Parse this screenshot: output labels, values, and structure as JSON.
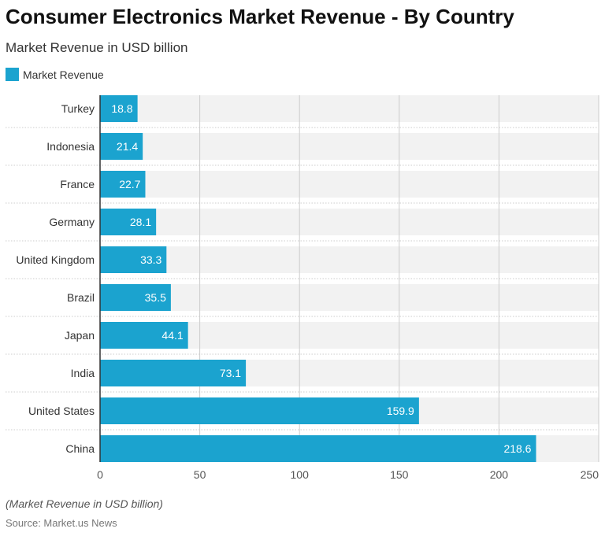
{
  "title": "Consumer Electronics Market Revenue - By Country",
  "subtitle": "Market Revenue in USD billion",
  "note": "(Market Revenue in USD billion)",
  "source": "Source: Market.us News",
  "chart_data": {
    "type": "bar",
    "orientation": "horizontal",
    "title": "Consumer Electronics Market Revenue - By Country",
    "subtitle": "Market Revenue in USD billion",
    "categories": [
      "Turkey",
      "Indonesia",
      "France",
      "Germany",
      "United Kingdom",
      "Brazil",
      "Japan",
      "India",
      "United States",
      "China"
    ],
    "series": [
      {
        "name": "Market Revenue",
        "values": [
          18.8,
          21.4,
          22.7,
          28.1,
          33.3,
          35.5,
          44.1,
          73.1,
          159.9,
          218.6
        ],
        "color": "#1ba3cf"
      }
    ],
    "xlim": [
      0,
      250
    ],
    "xticks": [
      0,
      50,
      100,
      150,
      200,
      250
    ],
    "grid": true,
    "legend": "top-left",
    "data_labels": true
  }
}
